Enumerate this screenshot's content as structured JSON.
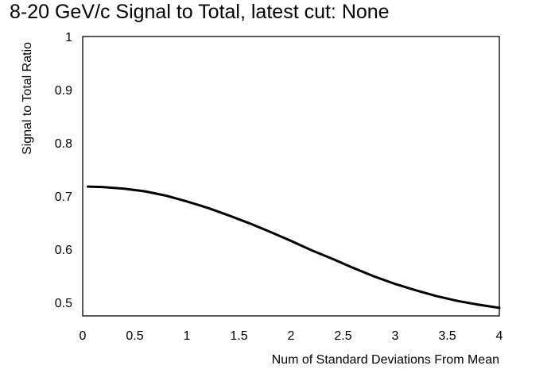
{
  "chart_data": {
    "type": "line",
    "title": "8-20 GeV/c Signal to Total, latest cut: None",
    "xlabel": "Num of Standard Deviations From Mean",
    "ylabel": "Signal to Total Ratio",
    "xlim": [
      0,
      4
    ],
    "ylim": [
      0.475,
      1
    ],
    "x_ticks": [
      "0",
      "0.5",
      "1",
      "1.5",
      "2",
      "2.5",
      "3",
      "3.5",
      "4"
    ],
    "y_ticks": [
      "0.5",
      "0.6",
      "0.7",
      "0.8",
      "0.9",
      "1"
    ],
    "grid": false,
    "series": [
      {
        "x": [
          0.05,
          0.2,
          0.4,
          0.6,
          0.8,
          1.0,
          1.2,
          1.4,
          1.6,
          1.8,
          2.0,
          2.2,
          2.4,
          2.6,
          2.8,
          3.0,
          3.2,
          3.4,
          3.6,
          3.8,
          4.0
        ],
        "y": [
          0.718,
          0.717,
          0.714,
          0.709,
          0.701,
          0.69,
          0.678,
          0.664,
          0.649,
          0.633,
          0.616,
          0.598,
          0.582,
          0.565,
          0.549,
          0.535,
          0.523,
          0.512,
          0.503,
          0.496,
          0.49
        ]
      }
    ]
  }
}
